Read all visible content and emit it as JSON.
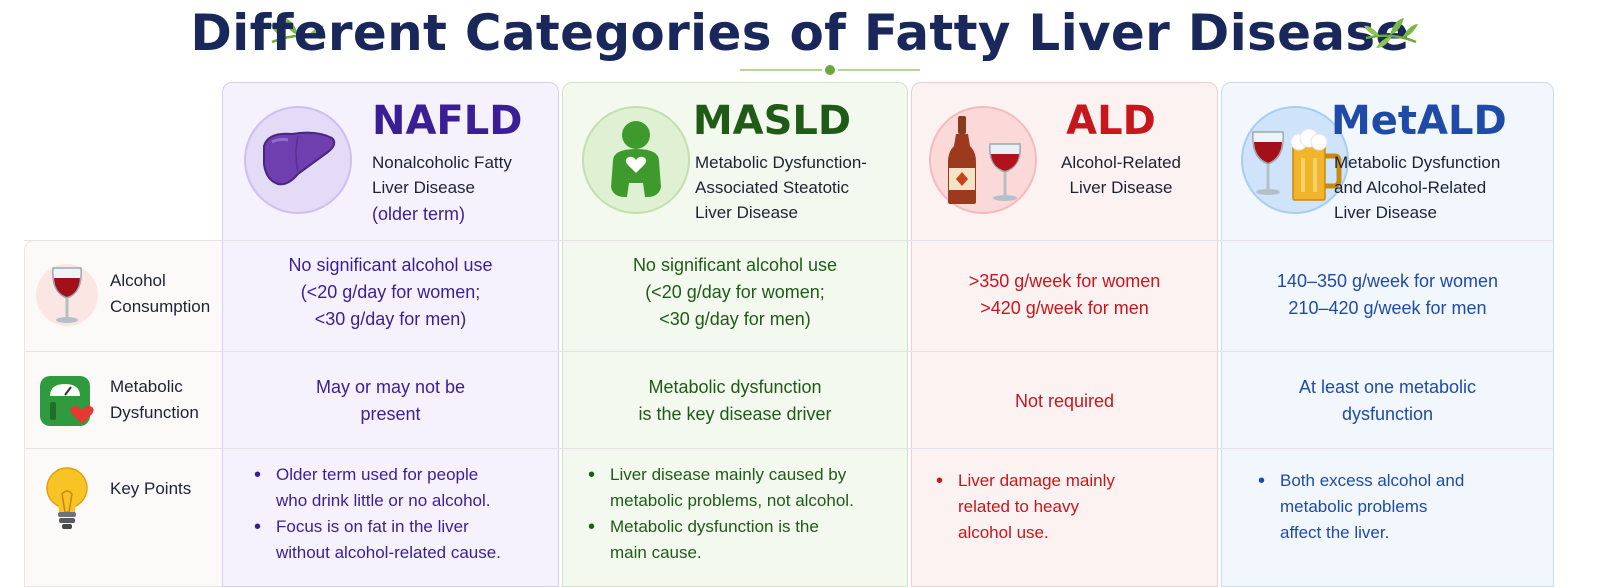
{
  "title": "Different Categories of Fatty Liver Disease",
  "colors": {
    "nafld": "#3a1e96",
    "masld": "#1f5b17",
    "ald": "#c8161d",
    "metald": "#1f4aa8",
    "title": "#19275a"
  },
  "columns": [
    {
      "key": "nafld",
      "name": "NAFLD",
      "subtitle_lines": [
        "Nonalcoholic Fatty",
        "Liver Disease"
      ],
      "note": "(older term)",
      "icon": "liver-icon",
      "alcohol_lines": [
        "No significant alcohol use",
        "(<20 g/day for women;",
        "<30 g/day for men)"
      ],
      "metabolic_lines": [
        "May or may not be",
        "present"
      ],
      "key_points": [
        [
          "Older term used for people",
          "who drink little or no alcohol."
        ],
        [
          "Focus is on fat in the liver",
          "without alcohol-related cause."
        ]
      ]
    },
    {
      "key": "masld",
      "name": "MASLD",
      "subtitle_lines": [
        "Metabolic Dysfunction-",
        "Associated Steatotic",
        "Liver Disease"
      ],
      "icon": "person-heart-icon",
      "alcohol_lines": [
        "No significant alcohol use",
        "(<20 g/day for women;",
        "<30 g/day for men)"
      ],
      "metabolic_lines": [
        "Metabolic dysfunction",
        "is the key disease driver"
      ],
      "key_points": [
        [
          "Liver disease mainly caused by",
          "metabolic problems, not alcohol."
        ],
        [
          "Metabolic dysfunction is the",
          "main cause."
        ]
      ]
    },
    {
      "key": "ald",
      "name": "ALD",
      "subtitle_lines": [
        "Alcohol-Related",
        "Liver Disease"
      ],
      "icon": "wine-bottle-glass-icon",
      "alcohol_lines": [
        ">350 g/week for women",
        ">420 g/week for men"
      ],
      "metabolic_lines": [
        "Not required"
      ],
      "key_points": [
        [
          "Liver damage mainly",
          "related to heavy",
          "alcohol use."
        ]
      ]
    },
    {
      "key": "metald",
      "name": "MetALD",
      "subtitle_lines": [
        "Metabolic Dysfunction",
        "and Alcohol-Related",
        "Liver Disease"
      ],
      "icon": "wine-beer-icon",
      "alcohol_lines": [
        "140–350 g/week for women",
        "210–420 g/week for men"
      ],
      "metabolic_lines": [
        "At least one metabolic",
        "dysfunction"
      ],
      "key_points": [
        [
          "Both excess alcohol and",
          "metabolic problems",
          "affect the liver."
        ]
      ]
    }
  ],
  "row_labels": [
    {
      "lines": [
        "Alcohol",
        "Consumption"
      ],
      "icon": "wine-glass-icon"
    },
    {
      "lines": [
        "Metabolic",
        "Dysfunction"
      ],
      "icon": "scale-heart-icon"
    },
    {
      "lines": [
        "Key Points"
      ],
      "icon": "lightbulb-icon"
    }
  ]
}
